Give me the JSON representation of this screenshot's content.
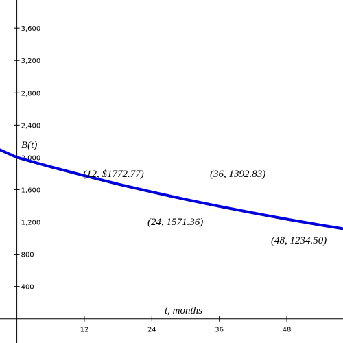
{
  "chart_data": {
    "type": "line",
    "xlabel": "t, months",
    "ylabel": "B(t)",
    "xlim": [
      -3,
      58
    ],
    "ylim": [
      -300,
      3950
    ],
    "x_ticks": [
      12,
      24,
      36,
      48
    ],
    "x_tick_labels": [
      "12",
      "24",
      "36",
      "48"
    ],
    "y_ticks": [
      400,
      800,
      1200,
      1600,
      2000,
      2400,
      2800,
      3200,
      3600
    ],
    "y_tick_labels": [
      "400",
      "800",
      "1,200",
      "1,600",
      "2,000",
      "2,400",
      "2,800",
      "3,200",
      "3,600"
    ],
    "series": [
      {
        "color": "#0000dd",
        "x": [
          -3,
          0,
          6,
          12,
          18,
          24,
          30,
          36,
          42,
          48,
          54,
          58
        ],
        "y": [
          2094.0,
          2000.0,
          1882.8,
          1772.77,
          1668.9,
          1571.36,
          1479.2,
          1392.83,
          1311.2,
          1234.5,
          1162.0,
          1116.0
        ]
      }
    ],
    "annotations": [
      {
        "text": "(12, $1772.77)"
      },
      {
        "text": "(24, 1571.36)"
      },
      {
        "text": "(36, 1392.83)"
      },
      {
        "text": "(48, 1234.50)"
      }
    ]
  }
}
